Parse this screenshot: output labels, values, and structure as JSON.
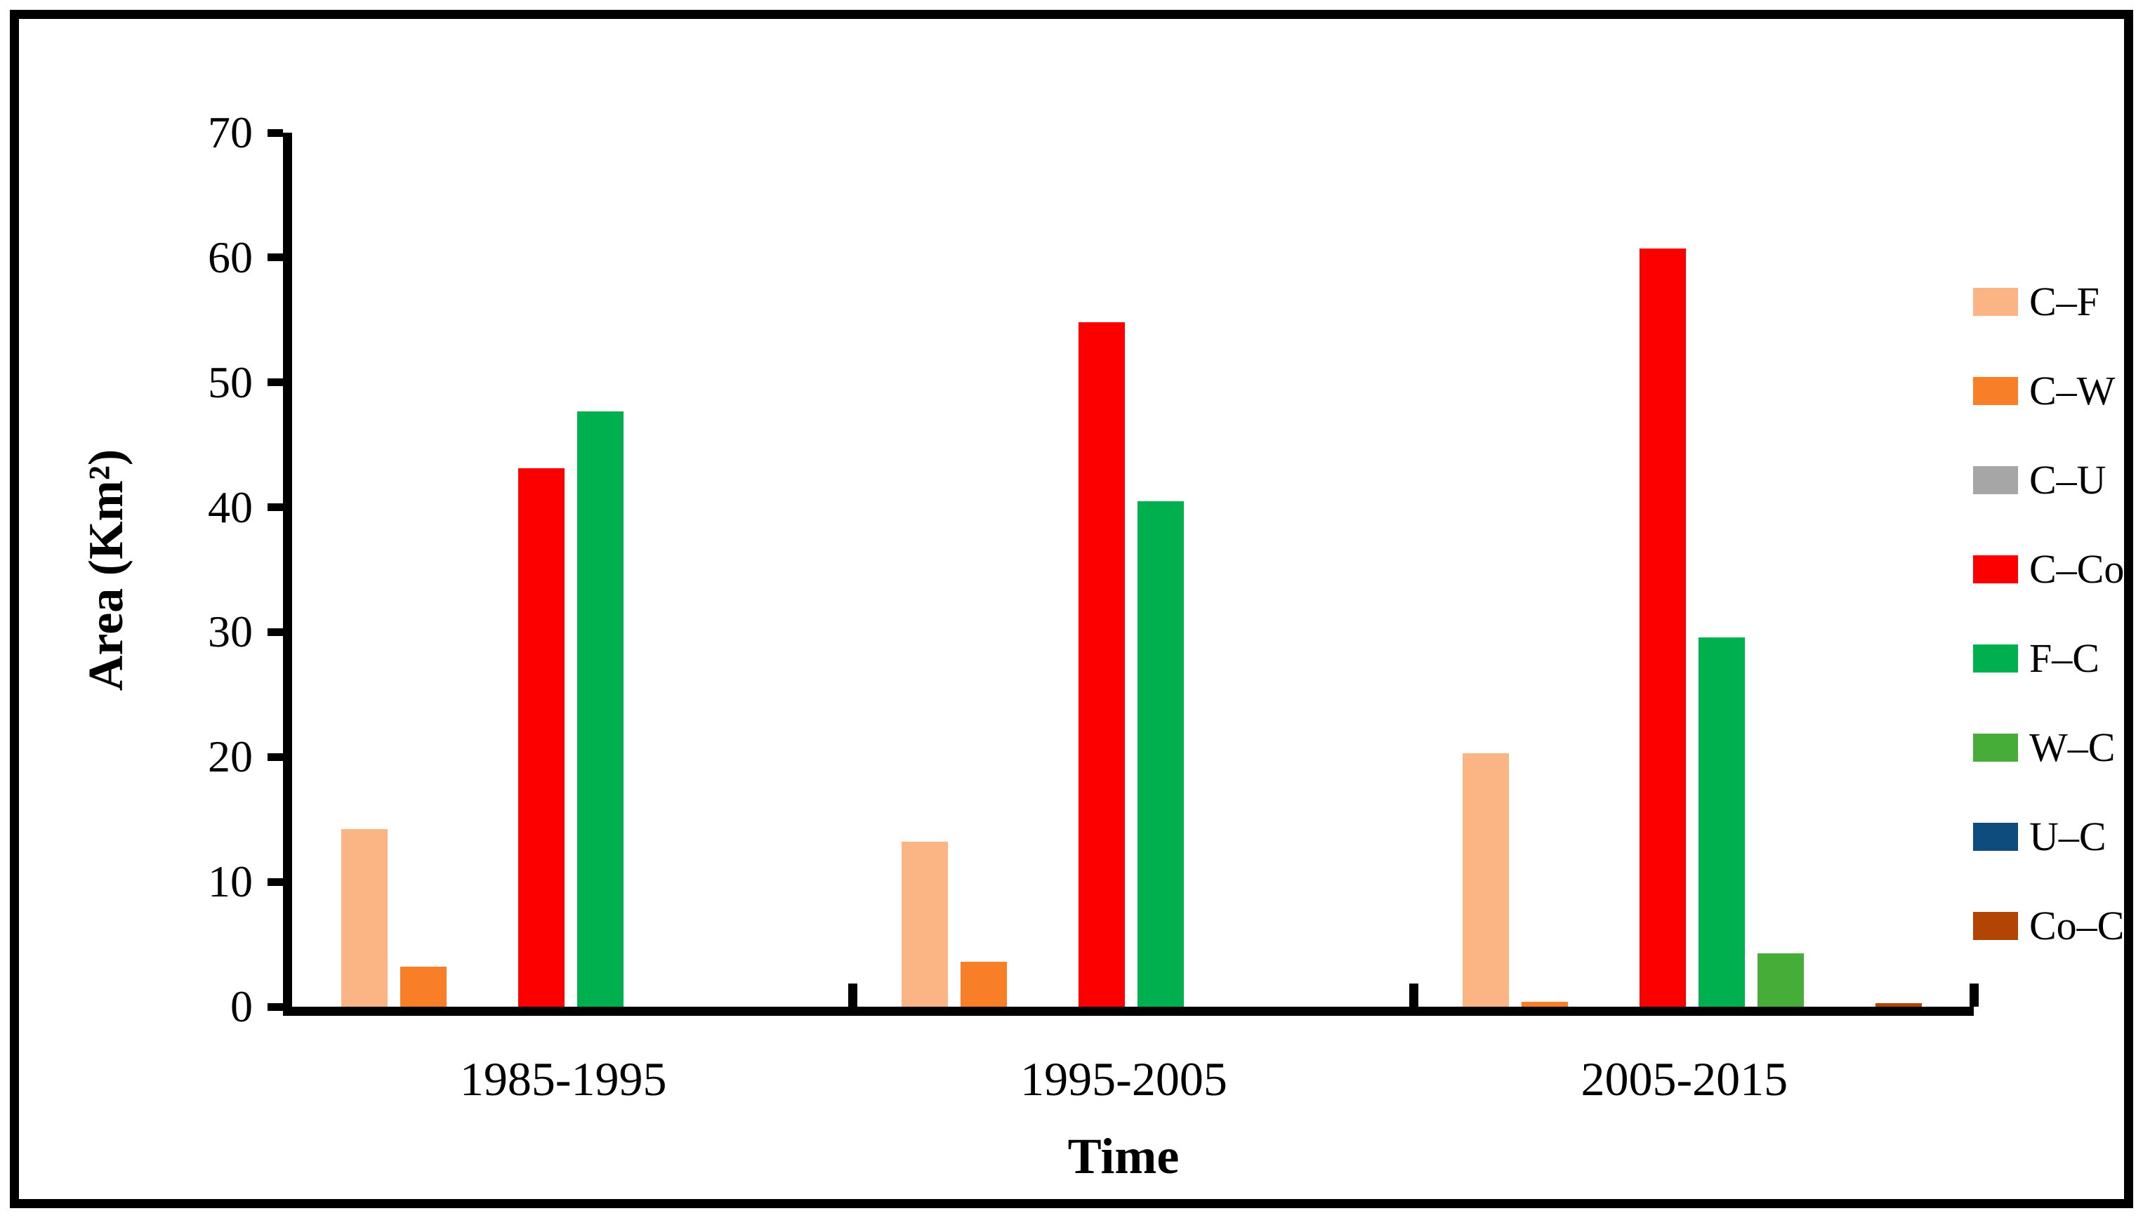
{
  "chart_data": {
    "type": "bar",
    "title": "",
    "xlabel": "Time",
    "ylabel": "Area (Km²)",
    "ylim": [
      0,
      70
    ],
    "yticks": [
      0,
      10,
      20,
      30,
      40,
      50,
      60,
      70
    ],
    "grid": false,
    "legend_position": "right",
    "categories": [
      "1985-1995",
      "1995-2005",
      "2005-2015"
    ],
    "series": [
      {
        "name": "C–F",
        "color": "#FBB584",
        "values": [
          14.2,
          13.2,
          20.3
        ]
      },
      {
        "name": "C–W",
        "color": "#F87F28",
        "values": [
          3.2,
          3.6,
          0.4
        ]
      },
      {
        "name": "C–U",
        "color": "#A6A6A6",
        "values": [
          0,
          0,
          0
        ]
      },
      {
        "name": "C–Co",
        "color": "#FC0000",
        "values": [
          43.1,
          54.8,
          60.7
        ]
      },
      {
        "name": "F–C",
        "color": "#00AF4D",
        "values": [
          47.7,
          40.5,
          29.6
        ]
      },
      {
        "name": "W–C",
        "color": "#46AD38",
        "values": [
          0,
          0,
          4.3
        ]
      },
      {
        "name": "U–C",
        "color": "#0E4C7D",
        "values": [
          0,
          0,
          0
        ]
      },
      {
        "name": "Co–C",
        "color": "#B34504",
        "values": [
          0,
          0,
          0.3
        ]
      }
    ]
  }
}
